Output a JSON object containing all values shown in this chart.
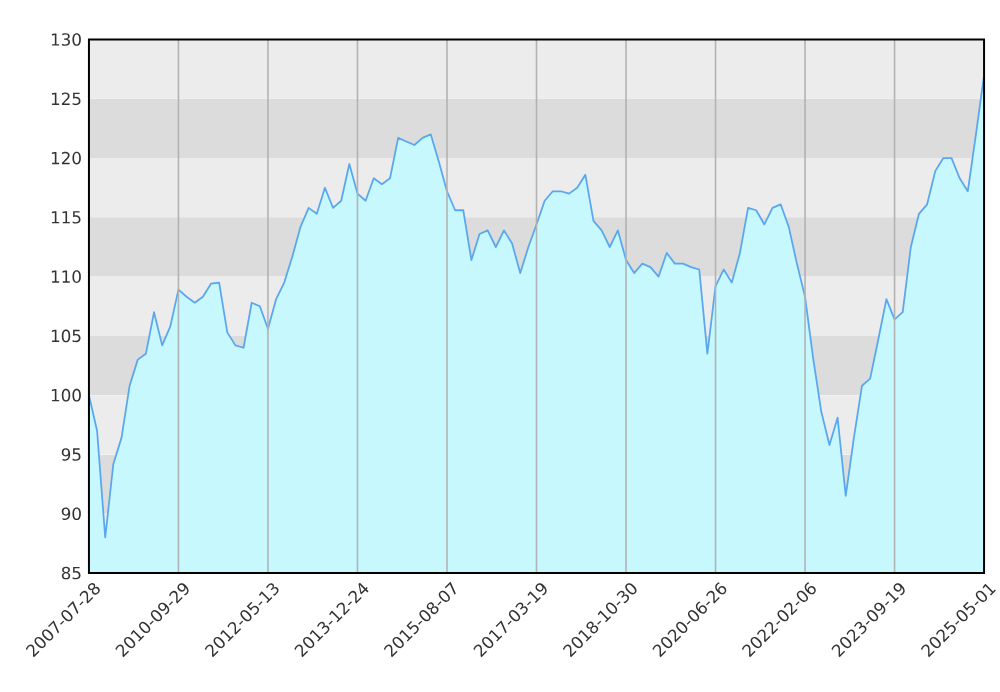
{
  "chart_data": {
    "type": "area",
    "categories": [
      "2007-07-28",
      null,
      null,
      null,
      null,
      null,
      null,
      null,
      null,
      null,
      null,
      "2010-09-29",
      null,
      null,
      null,
      null,
      null,
      null,
      null,
      null,
      null,
      null,
      "2012-05-13",
      null,
      null,
      null,
      null,
      null,
      null,
      null,
      null,
      null,
      null,
      "2013-12-24",
      null,
      null,
      null,
      null,
      null,
      null,
      null,
      null,
      null,
      null,
      "2015-08-07",
      null,
      null,
      null,
      null,
      null,
      null,
      null,
      null,
      null,
      null,
      "2017-03-19",
      null,
      null,
      null,
      null,
      null,
      null,
      null,
      null,
      null,
      null,
      "2018-10-30",
      null,
      null,
      null,
      null,
      null,
      null,
      null,
      null,
      null,
      null,
      "2020-06-26",
      null,
      null,
      null,
      null,
      null,
      null,
      null,
      null,
      null,
      null,
      "2022-02-06",
      null,
      null,
      null,
      null,
      null,
      null,
      null,
      null,
      null,
      null,
      "2023-09-19",
      null,
      null,
      null,
      null,
      null,
      null,
      null,
      null,
      null,
      null,
      "2025-05-01"
    ],
    "series": [
      {
        "color": "#5aa7ee",
        "values": [
          100,
          97,
          88,
          94.2,
          96.4,
          100.8,
          103,
          103.5,
          107,
          104.2,
          105.8,
          108.9,
          108.3,
          107.8,
          108.3,
          109.4,
          109.5,
          105.3,
          104.2,
          104,
          107.8,
          107.5,
          105.6,
          108.1,
          109.5,
          111.7,
          114.2,
          115.8,
          115.3,
          117.5,
          115.8,
          116.4,
          119.5,
          117,
          116.4,
          118.3,
          117.8,
          118.3,
          121.7,
          121.4,
          121.1,
          121.7,
          122,
          119.7,
          117.2,
          115.6,
          115.6,
          111.4,
          113.6,
          113.9,
          112.5,
          113.9,
          112.8,
          110.3,
          112.5,
          114.4,
          116.4,
          117.2,
          117.2,
          117,
          117.5,
          118.6,
          114.7,
          113.9,
          112.5,
          113.9,
          111.4,
          110.3,
          111.1,
          110.8,
          110,
          112,
          111.1,
          111.1,
          110.8,
          110.6,
          103.5,
          109.2,
          110.6,
          109.5,
          112,
          115.8,
          115.6,
          114.4,
          115.8,
          116.1,
          114.2,
          111.1,
          108.3,
          103.1,
          98.6,
          95.8,
          98.1,
          91.5,
          96.4,
          100.8,
          101.4,
          104.7,
          108.1,
          106.4,
          107,
          112.5,
          115.3,
          116.1,
          118.9,
          120,
          120,
          118.3,
          117.2,
          122,
          127
        ]
      }
    ],
    "ylim": [
      85,
      130
    ],
    "yticks": [
      85,
      90,
      95,
      100,
      105,
      110,
      115,
      120,
      125,
      130
    ],
    "grid": true
  }
}
